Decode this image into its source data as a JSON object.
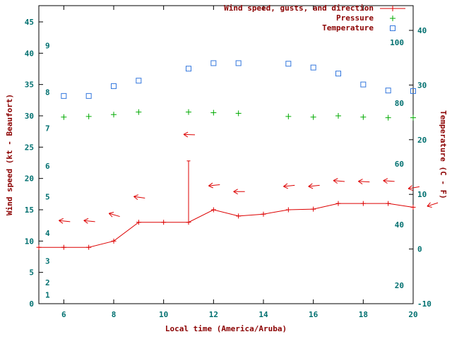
{
  "colors": {
    "wind": "#dd0000",
    "pressure": "#00aa00",
    "temperature": "#3377dd",
    "tick_labels": "#007070",
    "axis_titles": "#8b0000",
    "plot_border": "#000000",
    "background": "#ffffff"
  },
  "legend": {
    "items": [
      {
        "label": "Wind speed, gusts, and direction",
        "series": "wind"
      },
      {
        "label": "Pressure",
        "series": "pressure"
      },
      {
        "label": "Temperature",
        "series": "temperature"
      }
    ]
  },
  "axes": {
    "x": {
      "title": "Local time (America/Aruba)",
      "min": 5,
      "max": 20,
      "ticks": [
        6,
        8,
        10,
        12,
        14,
        16,
        18,
        20
      ]
    },
    "y_left": {
      "title": "Wind speed (kt - Beaufort)",
      "min": 0,
      "max": 45,
      "ticks": [
        0,
        5,
        10,
        15,
        20,
        25,
        30,
        35,
        40,
        45
      ],
      "beaufort_labels": [
        {
          "label": "1",
          "kt": 1.4
        },
        {
          "label": "2",
          "kt": 3.4
        },
        {
          "label": "3",
          "kt": 6.8
        },
        {
          "label": "4",
          "kt": 11.3
        },
        {
          "label": "5",
          "kt": 17.1
        },
        {
          "label": "6",
          "kt": 22.0
        },
        {
          "label": "7",
          "kt": 28.0
        },
        {
          "label": "8",
          "kt": 33.8
        },
        {
          "label": "9",
          "kt": 41.2
        }
      ]
    },
    "y_right": {
      "title": "Temperature (C - F)",
      "c_min": -10,
      "c_max": 44.5,
      "c_ticks": [
        -10,
        0,
        10,
        20,
        30,
        40
      ],
      "f_ticks": [
        20,
        40,
        60,
        80,
        100
      ]
    }
  },
  "chart_data": {
    "type": "line",
    "title": "",
    "xlabel": "Local time (America/Aruba)",
    "x_range": [
      5,
      20
    ],
    "y_left_label": "Wind speed (kt - Beaufort)",
    "y_left_range": [
      0,
      47.6
    ],
    "y_right_label": "Temperature (C - F)",
    "y_right_range_c": [
      -10,
      44.5
    ],
    "grid": false,
    "legend_position": "top-right",
    "series": [
      {
        "name": "wind_speed_kt",
        "legend": "Wind speed, gusts, and direction",
        "axis": "left",
        "marker": "plus",
        "line": true,
        "color_key": "wind",
        "x": [
          5,
          6,
          7,
          8,
          9,
          10,
          11,
          12,
          13,
          14,
          15,
          16,
          17,
          18,
          19,
          20
        ],
        "y": [
          9,
          9,
          9,
          10,
          13,
          13,
          13,
          15,
          14,
          14.3,
          15,
          15.1,
          16,
          16,
          16,
          15.4
        ]
      },
      {
        "name": "wind_gusts_kt",
        "axis": "left",
        "color_key": "wind",
        "segments": [
          {
            "x": 11,
            "from": 13,
            "to": 22.8
          }
        ]
      },
      {
        "name": "wind_direction",
        "axis": "left",
        "color_key": "wind",
        "arrows": [
          {
            "h": 6,
            "kt": 13.2,
            "deg": 186
          },
          {
            "h": 7,
            "kt": 13.2,
            "deg": 186
          },
          {
            "h": 8,
            "kt": 14.2,
            "deg": 196
          },
          {
            "h": 9,
            "kt": 17.0,
            "deg": 188
          },
          {
            "h": 11,
            "kt": 27.0,
            "deg": 182
          },
          {
            "h": 12,
            "kt": 18.9,
            "deg": 174
          },
          {
            "h": 13,
            "kt": 17.9,
            "deg": 180
          },
          {
            "h": 15,
            "kt": 18.8,
            "deg": 174
          },
          {
            "h": 16,
            "kt": 18.8,
            "deg": 174
          },
          {
            "h": 17,
            "kt": 19.6,
            "deg": 185
          },
          {
            "h": 18,
            "kt": 19.5,
            "deg": 183
          },
          {
            "h": 19,
            "kt": 19.6,
            "deg": 184
          },
          {
            "h": 20,
            "kt": 18.5,
            "deg": 170
          },
          {
            "h": 20.75,
            "kt": 15.8,
            "deg": 162
          }
        ]
      },
      {
        "name": "pressure",
        "legend": "Pressure",
        "axis": "left_position_only",
        "marker": "plus",
        "color_key": "pressure",
        "x": [
          6,
          7,
          8,
          9,
          11,
          12,
          13,
          15,
          16,
          17,
          18,
          19,
          20
        ],
        "y_plot_kt": [
          29.8,
          29.9,
          30.2,
          30.6,
          30.6,
          30.5,
          30.4,
          29.9,
          29.8,
          30.0,
          29.8,
          29.7,
          29.7
        ]
      },
      {
        "name": "temperature_c",
        "legend": "Temperature",
        "axis": "right",
        "marker": "open_square",
        "color_key": "temperature",
        "x": [
          6,
          7,
          8,
          9,
          11,
          12,
          13,
          15,
          16,
          17,
          18,
          19,
          20
        ],
        "y_c": [
          28.0,
          28.0,
          29.8,
          30.8,
          33.0,
          34.0,
          34.0,
          33.9,
          33.2,
          32.1,
          30.1,
          29.0,
          28.9
        ]
      }
    ]
  }
}
